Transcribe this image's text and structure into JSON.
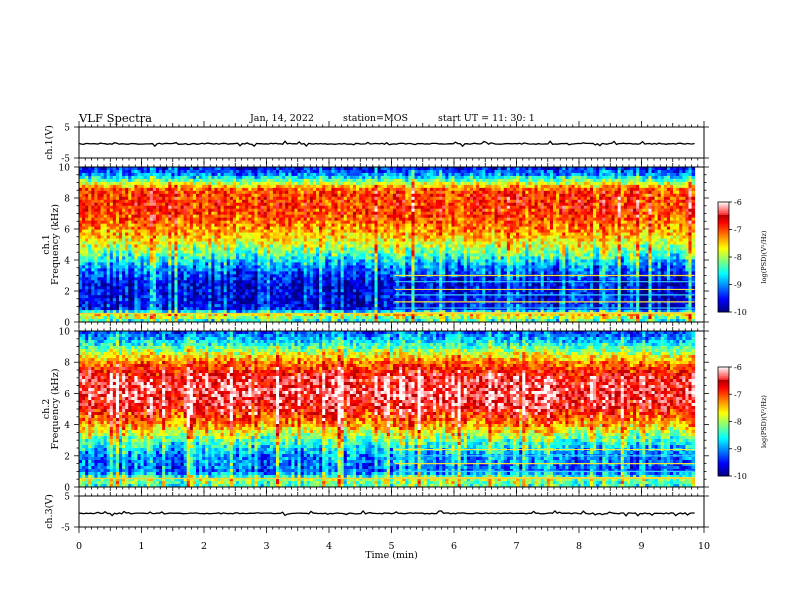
{
  "header": {
    "title": "VLF Spectra",
    "date": "Jan. 14, 2022",
    "station": "station=MOS",
    "start_time": "start  UT =   11: 30: 1"
  },
  "colors": {
    "background": "#ffffff",
    "axes": "#000000"
  },
  "chart_data": [
    {
      "type": "line",
      "panel": "waveform-ch1",
      "ylabel": "ch.1(V)",
      "ylim": [
        -5,
        5
      ],
      "yticks": [
        "5",
        "-5"
      ],
      "xlim": [
        0,
        10
      ],
      "series": [
        {
          "x": [
            0,
            9.85
          ],
          "y": [
            -0.4,
            -0.4
          ]
        }
      ]
    },
    {
      "type": "heatmap",
      "panel": "spectrogram-ch1",
      "ylabel": "ch.1  Frequency (kHz)",
      "ylim": [
        0,
        10
      ],
      "yticks": [
        "0",
        "2",
        "4",
        "6",
        "8",
        "10"
      ],
      "xlim": [
        0,
        10
      ],
      "x_data_end": 9.85,
      "colorbar": {
        "label": "log(PSD)(V²/Hz)",
        "range": [
          -10,
          -6
        ],
        "ticks": [
          "-6",
          "-7",
          "-8",
          "-9",
          "-10"
        ]
      },
      "freq_profile": [
        {
          "f": 0.0,
          "v": -8.6
        },
        {
          "f": 0.5,
          "v": -7.6
        },
        {
          "f": 0.8,
          "v": -9.5
        },
        {
          "f": 1.5,
          "v": -9.6
        },
        {
          "f": 2.5,
          "v": -9.6
        },
        {
          "f": 3.5,
          "v": -9.1
        },
        {
          "f": 4.5,
          "v": -8.2
        },
        {
          "f": 5.5,
          "v": -7.5
        },
        {
          "f": 6.5,
          "v": -7.1
        },
        {
          "f": 7.5,
          "v": -6.9
        },
        {
          "f": 8.5,
          "v": -7.0
        },
        {
          "f": 9.0,
          "v": -8.0
        },
        {
          "f": 9.5,
          "v": -9.0
        },
        {
          "f": 10.0,
          "v": -9.6
        }
      ],
      "band_lines_after_min": 5.05,
      "band_lines_khz": [
        0.6,
        0.9,
        1.3,
        1.75,
        2.1,
        2.6,
        3.0
      ]
    },
    {
      "type": "heatmap",
      "panel": "spectrogram-ch2",
      "ylabel": "ch.2  Frequency (kHz)",
      "ylim": [
        0,
        10
      ],
      "yticks": [
        "0",
        "2",
        "4",
        "6",
        "8",
        "10"
      ],
      "xlim": [
        0,
        10
      ],
      "x_data_end": 9.85,
      "colorbar": {
        "label": "log(PSD)(V²/Hz)",
        "range": [
          -10,
          -6
        ],
        "ticks": [
          "-6",
          "-7",
          "-8",
          "-9",
          "-10"
        ]
      },
      "freq_profile": [
        {
          "f": 0.0,
          "v": -8.4
        },
        {
          "f": 0.5,
          "v": -8.0
        },
        {
          "f": 1.0,
          "v": -9.2
        },
        {
          "f": 2.0,
          "v": -9.0
        },
        {
          "f": 3.0,
          "v": -8.3
        },
        {
          "f": 4.0,
          "v": -7.3
        },
        {
          "f": 5.0,
          "v": -6.6
        },
        {
          "f": 6.0,
          "v": -6.4
        },
        {
          "f": 7.0,
          "v": -6.5
        },
        {
          "f": 8.0,
          "v": -7.2
        },
        {
          "f": 8.7,
          "v": -8.0
        },
        {
          "f": 9.3,
          "v": -8.7
        },
        {
          "f": 10.0,
          "v": -9.3
        }
      ],
      "band_lines_after_min": 5.05,
      "band_lines_khz": [
        0.6,
        1.0,
        1.5,
        2.0,
        2.4
      ]
    },
    {
      "type": "line",
      "panel": "waveform-ch3",
      "ylabel": "ch.3(V)",
      "ylim": [
        -5,
        5
      ],
      "yticks": [
        "5",
        "-5"
      ],
      "xlim": [
        0,
        10
      ],
      "xlabel": "Time  (min)",
      "xticks": [
        "0",
        "1",
        "2",
        "3",
        "4",
        "5",
        "6",
        "7",
        "8",
        "9",
        "10"
      ],
      "series": [
        {
          "x": [
            0,
            9.85
          ],
          "y": [
            -0.6,
            -0.6
          ]
        }
      ]
    }
  ]
}
